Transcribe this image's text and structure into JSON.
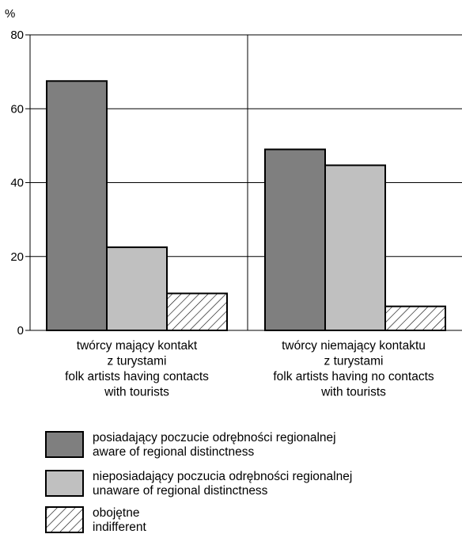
{
  "chart_data": {
    "type": "bar",
    "ylabel": "%",
    "ylim": [
      0,
      80
    ],
    "yticks": [
      0,
      20,
      40,
      60,
      80
    ],
    "grid": true,
    "legend_position": "bottom",
    "categories": [
      [
        "twórcy mający kontakt",
        "z turystami",
        "folk artists having contacts",
        "with tourists"
      ],
      [
        "twórcy niemający kontaktu",
        "z turystami",
        "folk artists having no contacts",
        "with tourists"
      ]
    ],
    "series": [
      {
        "name": [
          "posiadający poczucie odrębności regionalnej",
          "aware of regional distinctness"
        ],
        "values": [
          67.5,
          49
        ],
        "fill": "#7f7f7f",
        "pattern": "solid"
      },
      {
        "name": [
          "nieposiadający poczucia odrębności regionalnej",
          "unaware of regional distinctness"
        ],
        "values": [
          22.5,
          44.7
        ],
        "fill": "#c0c0c0",
        "pattern": "solid"
      },
      {
        "name": [
          "obojętne",
          "indifferent"
        ],
        "values": [
          10,
          6.5
        ],
        "fill": "#ffffff",
        "pattern": "hatch"
      }
    ]
  }
}
